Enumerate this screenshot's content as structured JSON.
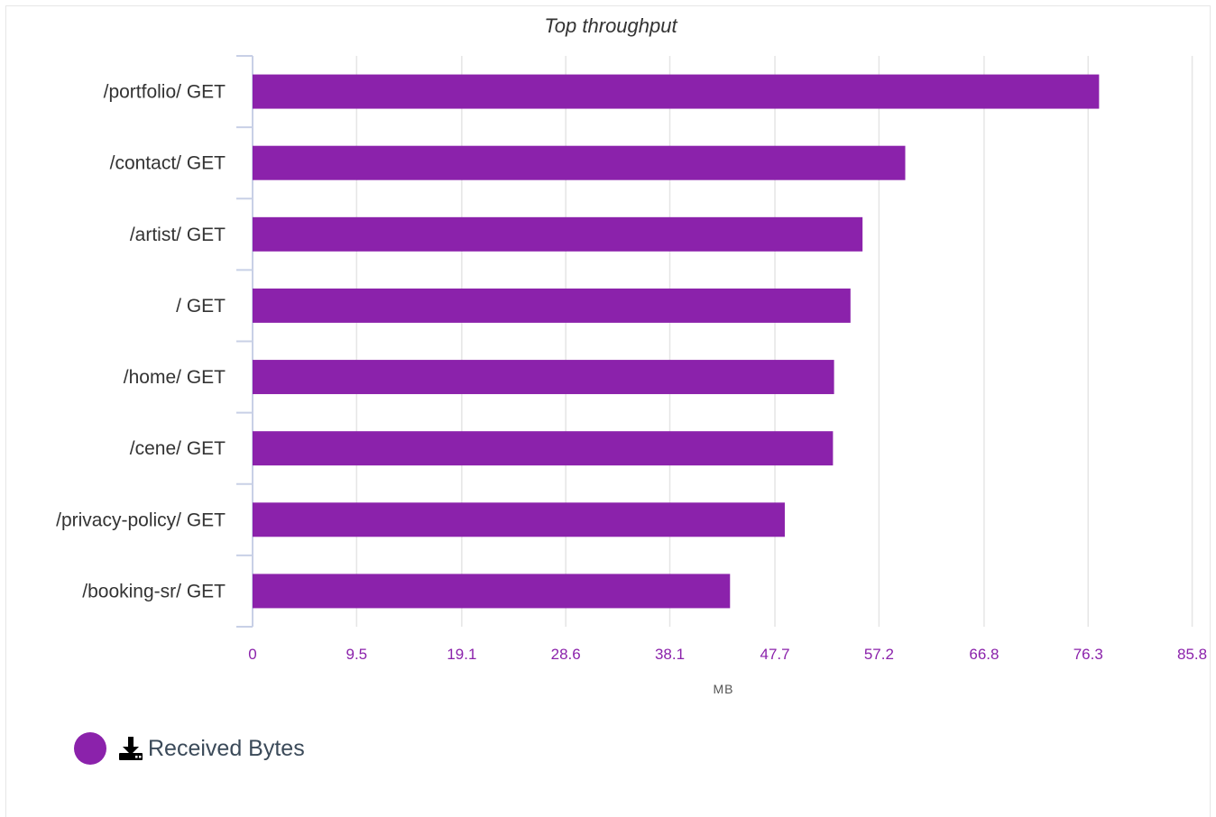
{
  "chart_data": {
    "type": "bar",
    "orientation": "horizontal",
    "title": "Top throughput",
    "categories": [
      "/portfolio/ GET",
      "/contact/ GET",
      "/artist/ GET",
      "/ GET",
      "/home/ GET",
      "/cene/ GET",
      "/privacy-policy/ GET",
      "/booking-sr/ GET"
    ],
    "series": [
      {
        "name": "Received Bytes",
        "values": [
          77.3,
          59.6,
          55.7,
          54.6,
          53.1,
          53.0,
          48.6,
          43.6
        ]
      }
    ],
    "xlabel": "MB",
    "xlim": [
      0,
      86.0
    ],
    "xticks": [
      0,
      9.5,
      19.1,
      28.6,
      38.1,
      47.7,
      57.2,
      66.8,
      76.3,
      85.8
    ],
    "xtick_labels": [
      "0",
      "9.5",
      "19.1",
      "28.6",
      "38.1",
      "47.7",
      "57.2",
      "66.8",
      "76.3",
      "85.8"
    ],
    "grid": true,
    "legend": "bottom-left"
  },
  "legend": {
    "icon": "download-icon",
    "label": "Received Bytes"
  },
  "colors": {
    "bar": "#8b22ab",
    "tick_label": "#8b22ab",
    "grid": "#e5e5e5",
    "axis": "#c8d0e6"
  }
}
